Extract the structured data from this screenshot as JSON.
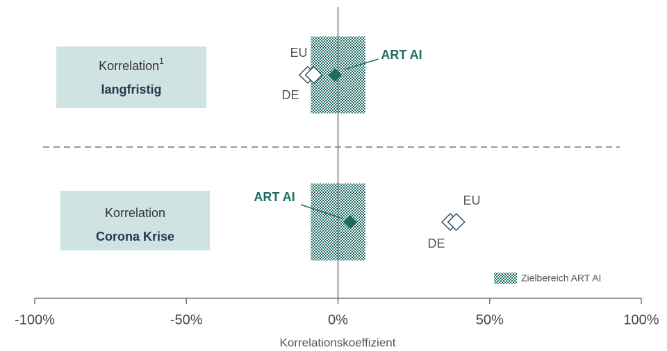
{
  "chart_data": {
    "type": "dotplot",
    "xlabel": "Korrelationskoeffizient",
    "xlim": [
      -100,
      100
    ],
    "xticks": [
      {
        "value": -100,
        "label": "-100%"
      },
      {
        "value": -50,
        "label": "-50%"
      },
      {
        "value": 0,
        "label": "0%"
      },
      {
        "value": 50,
        "label": "50%"
      },
      {
        "value": 100,
        "label": "100%"
      }
    ],
    "rows": [
      {
        "title": "Korrelation",
        "footnote": "1",
        "subtitle": "langfristig"
      },
      {
        "title": "Korrelation",
        "subtitle": "Corona Krise"
      }
    ],
    "band": {
      "name": "Zielbereich ART AI",
      "range": [
        -9,
        9
      ],
      "color": "#1d6b62"
    },
    "series": [
      {
        "name": "ART AI",
        "color": "#1d6b62",
        "values": [
          -1,
          4
        ]
      },
      {
        "name": "EU",
        "color": "#ffffff",
        "values": [
          -8,
          39
        ]
      },
      {
        "name": "DE",
        "color": "#ffffff",
        "values": [
          -10,
          37
        ]
      }
    ]
  }
}
